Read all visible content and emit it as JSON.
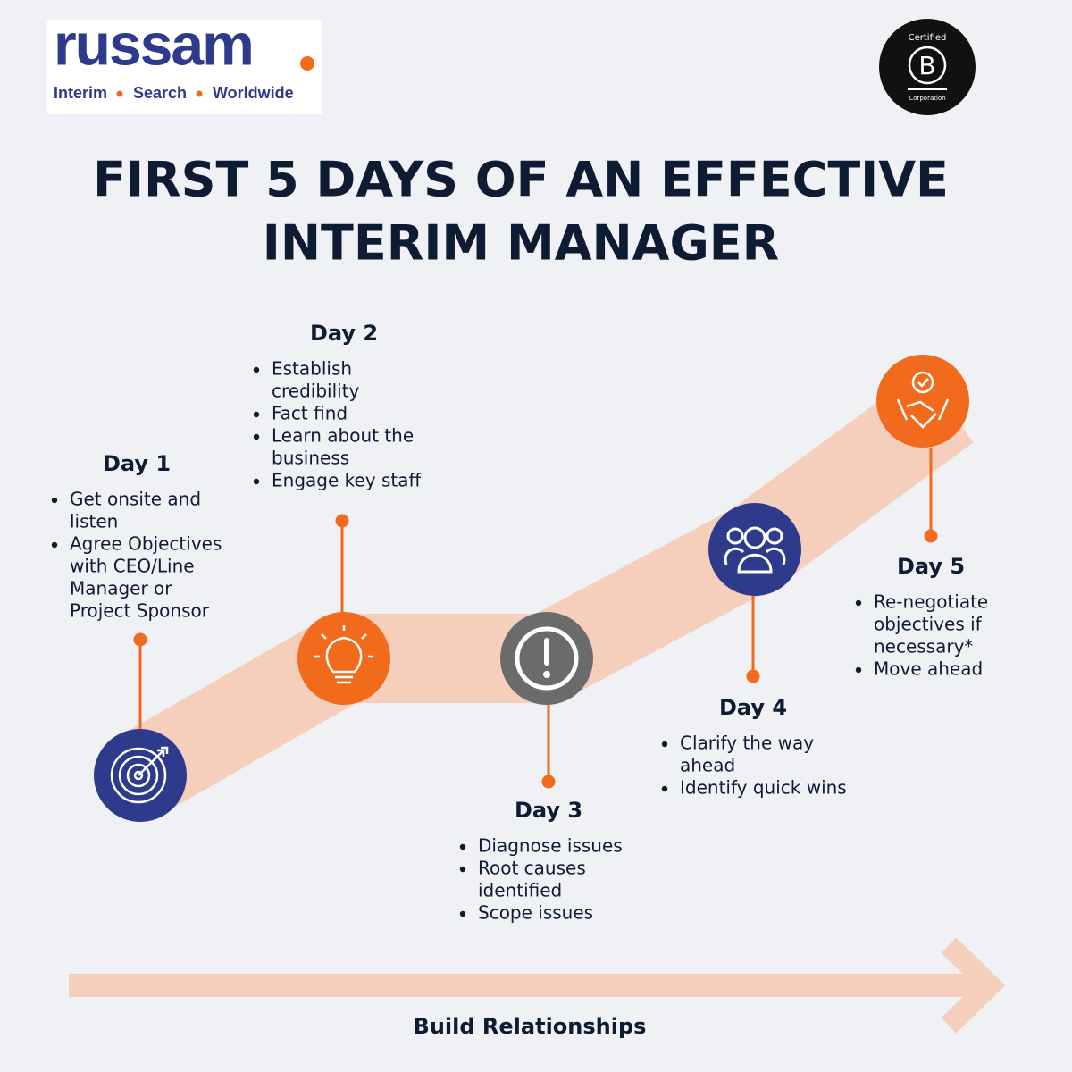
{
  "logo": {
    "name": "russam",
    "tagline": [
      "Interim",
      "Search",
      "Worldwide"
    ]
  },
  "badge": {
    "top": "Certified",
    "letter": "B",
    "bottom": "Corporation"
  },
  "title": [
    "FIRST 5 DAYS OF AN EFFECTIVE",
    "INTERIM MANAGER"
  ],
  "days": [
    {
      "label": "Day 1",
      "bullets": [
        [
          "Get onsite and",
          "listen"
        ],
        [
          "Agree Objectives",
          "with CEO/Line",
          "Manager or",
          "Project Sponsor"
        ]
      ]
    },
    {
      "label": "Day 2",
      "bullets": [
        [
          "Establish",
          "credibility"
        ],
        [
          "Fact find"
        ],
        [
          "Learn about the",
          "business"
        ],
        [
          "Engage key staff"
        ]
      ]
    },
    {
      "label": "Day 3",
      "bullets": [
        [
          "Diagnose issues"
        ],
        [
          "Root causes",
          "identified"
        ],
        [
          "Scope issues"
        ]
      ]
    },
    {
      "label": "Day 4",
      "bullets": [
        [
          "Clarify the way",
          "ahead"
        ],
        [
          "Identify quick wins"
        ]
      ]
    },
    {
      "label": "Day 5",
      "bullets": [
        [
          "Re-negotiate",
          "objectives if",
          "necessary*"
        ],
        [
          "Move ahead"
        ]
      ]
    }
  ],
  "footer": "Build Relationships"
}
